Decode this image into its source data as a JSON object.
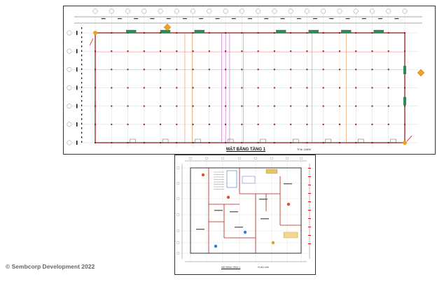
{
  "slide": {
    "copyright": "© Sembcorp Development 2022"
  },
  "drawing_1": {
    "title": "MẶT BẰNG TẦNG 1",
    "scale": "Tỉ lệ: 1/500",
    "colors": {
      "wall": "#9b1c1c",
      "gridline": "#c8c8c8",
      "accent_line": "#e07a2e",
      "magenta_line": "#cc33cc",
      "door": "#2e8b57",
      "marker": "#f0a020"
    }
  },
  "drawing_2": {
    "title": "MẶT BẰNG TẦNG 1",
    "scale": "TỈ LỆ 1:100"
  }
}
